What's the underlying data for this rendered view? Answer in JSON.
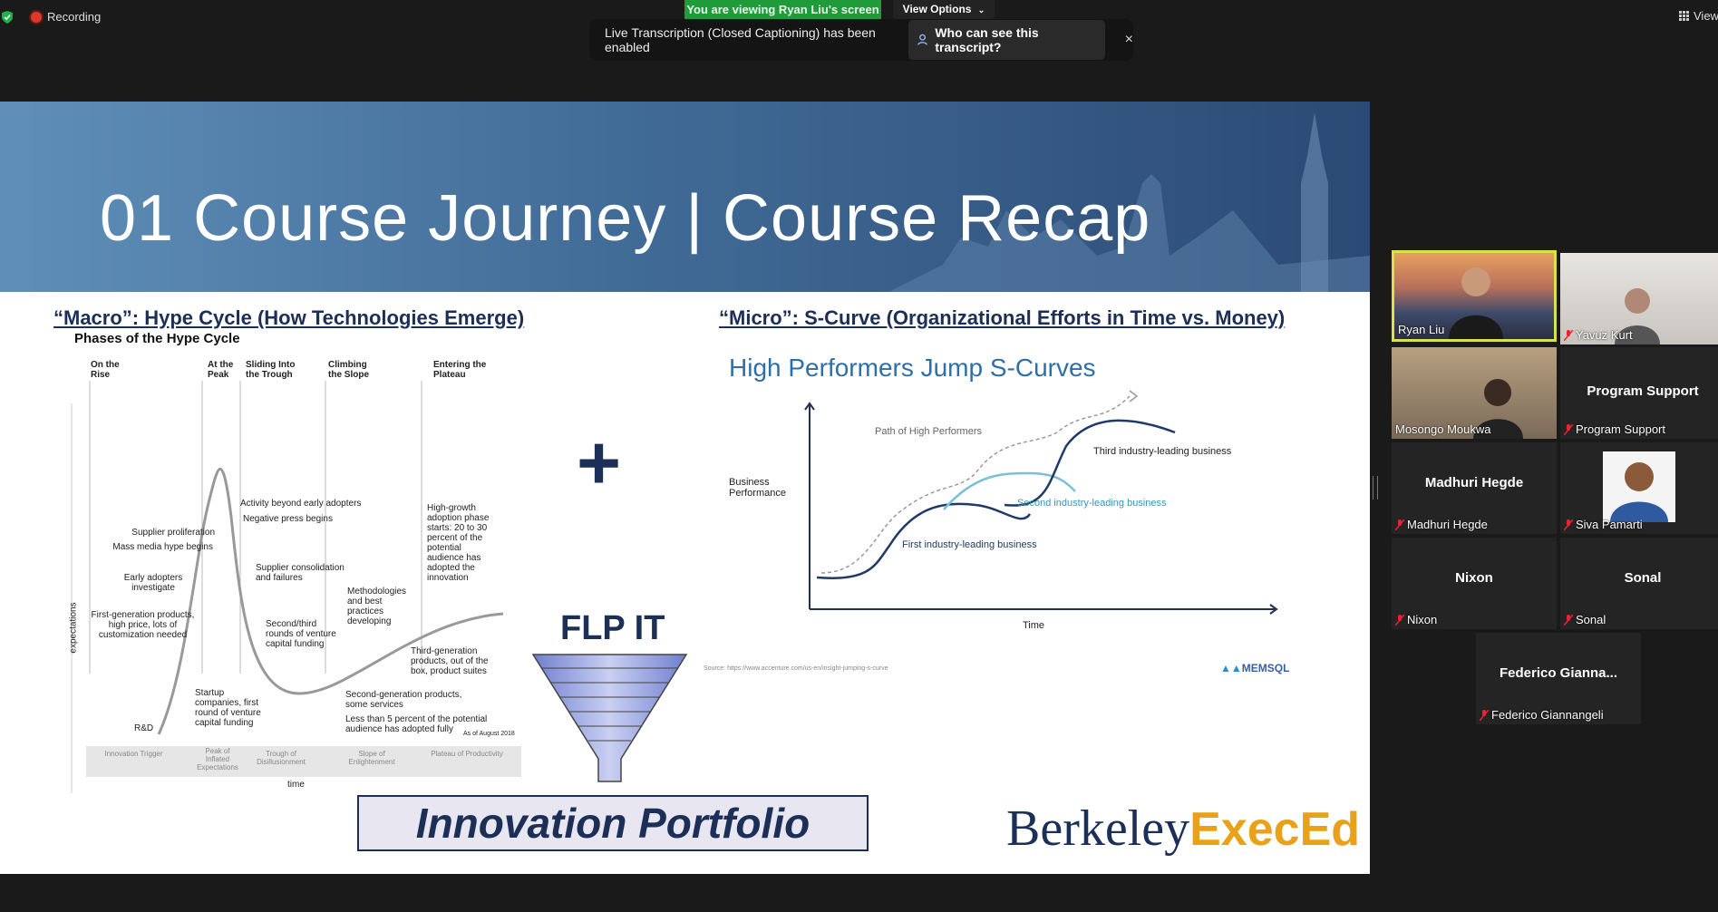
{
  "top": {
    "recording": "Recording",
    "viewing": "You are viewing Ryan Liu's screen",
    "view_options": "View Options",
    "view_menu": "View"
  },
  "banner": {
    "message": "Live Transcription (Closed Captioning) has been enabled",
    "who_button": "Who can see this transcript?",
    "close": "×"
  },
  "slide": {
    "title": "01 Course Journey | Course Recap",
    "macro_title": "“Macro”: Hype Cycle (How Technologies Emerge)",
    "micro_title": "“Micro”: S-Curve (Organizational Efforts in Time vs. Money)",
    "hype": {
      "heading": "Phases of the Hype Cycle",
      "phases": [
        "On the Rise",
        "At the Peak",
        "Sliding Into the Trough",
        "Climbing the Slope",
        "Entering the Plateau"
      ],
      "labels": [
        "Activity beyond early adopters",
        "Negative press begins",
        "Supplier proliferation",
        "Mass media hype begins",
        "Supplier consolidation and failures",
        "Early adopters investigate",
        "Methodologies and best practices developing",
        "First-generation products, high price, lots of customization needed",
        "Second/third rounds of venture capital funding",
        "Third-generation products, out of the box, product suites",
        "Startup companies, first round of venture capital funding",
        "Second-generation products, some services",
        "Less than 5 percent of the potential audience has adopted fully",
        "R&D",
        "High-growth adoption phase starts: 20 to 30 percent of the potential audience has adopted the innovation"
      ],
      "axis_y": "expectations",
      "axis_x": "time",
      "date": "As of August 2018",
      "stages": [
        "Innovation Trigger",
        "Peak of Inflated Expectations",
        "Trough of Disillusionment",
        "Slope of Enlightenment",
        "Plateau of Productivity"
      ]
    },
    "scurve": {
      "heading": "High Performers Jump S-Curves",
      "ylabel": "Business Performance",
      "xlabel": "Time",
      "path_label": "Path of High Performers",
      "first": "First industry-leading business",
      "second": "Second industry-leading business",
      "third": "Third industry-leading business",
      "source": "Source: https://www.accenture.com/us-en/insight-jumping-s-curve",
      "logo": "MEMSQL"
    },
    "flp": "FLP IT",
    "portfolio": "Innovation Portfolio",
    "berkeley": "Berkeley",
    "execed": "ExecEd"
  },
  "participants": [
    {
      "name": "Ryan Liu",
      "video": true,
      "active": true,
      "muted": false
    },
    {
      "name": "Yavuz Kurt",
      "video": true,
      "muted": true
    },
    {
      "name": "Mosongo Moukwa",
      "video": true,
      "muted": false
    },
    {
      "name": "Program Support",
      "display": "Program Support",
      "muted": true
    },
    {
      "name": "Madhuri Hegde",
      "display": "Madhuri Hegde",
      "muted": true
    },
    {
      "name": "Siva Pamarti",
      "video": true,
      "muted": true
    },
    {
      "name": "Nixon",
      "display": "Nixon",
      "muted": true
    },
    {
      "name": "Sonal",
      "display": "Sonal",
      "muted": true
    },
    {
      "name": "Federico Giannangeli",
      "display": "Federico Gianna...",
      "muted": true
    }
  ]
}
